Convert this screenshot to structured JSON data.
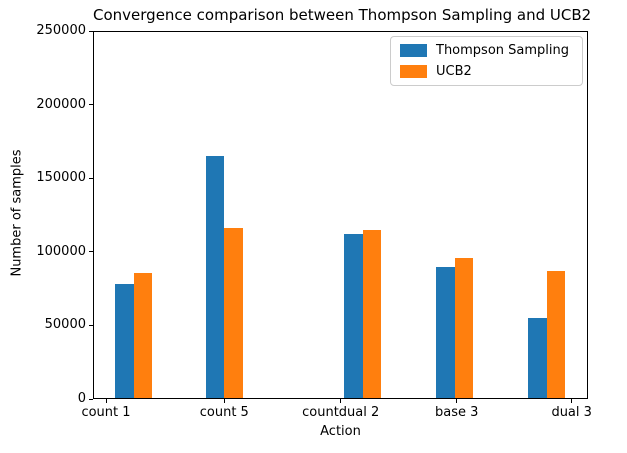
{
  "chart_data": {
    "type": "bar",
    "title": "Convergence comparison between Thompson Sampling and UCB2",
    "xlabel": "Action",
    "ylabel": "Number of samples",
    "categories": [
      "count 1",
      "count 5",
      "countdual 2",
      "base 3",
      "dual 3"
    ],
    "series": [
      {
        "name": "Thompson Sampling",
        "color": "#1f77b4",
        "values": [
          78000,
          165000,
          112000,
          89500,
          55000
        ]
      },
      {
        "name": "UCB2",
        "color": "#ff7f0e",
        "values": [
          85500,
          116000,
          114500,
          95500,
          87000
        ]
      }
    ],
    "ylim": [
      0,
      250000
    ],
    "yticks": [
      0,
      50000,
      100000,
      150000,
      200000,
      250000
    ],
    "grid": false,
    "legend_position": "upper right",
    "background_color": "#ffffff",
    "axis_color": "#000000"
  }
}
